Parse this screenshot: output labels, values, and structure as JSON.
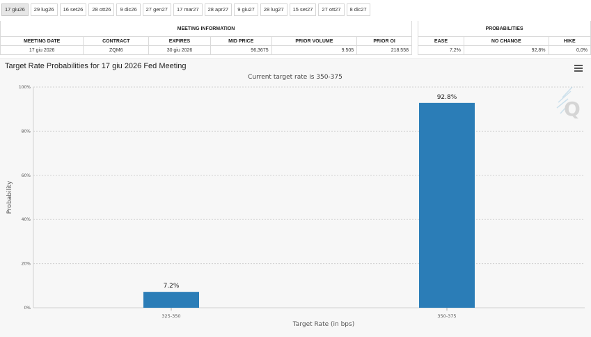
{
  "tabs": [
    {
      "label": "17 giu26",
      "active": true
    },
    {
      "label": "29 lug26"
    },
    {
      "label": "16 set26"
    },
    {
      "label": "28 ott26"
    },
    {
      "label": "9 dic26"
    },
    {
      "label": "27 gen27"
    },
    {
      "label": "17 mar27"
    },
    {
      "label": "28 apr27"
    },
    {
      "label": "9 giu27"
    },
    {
      "label": "28 lug27"
    },
    {
      "label": "15 set27"
    },
    {
      "label": "27 ott27"
    },
    {
      "label": "8 dic27"
    }
  ],
  "meeting_info": {
    "title": "MEETING INFORMATION",
    "headers": [
      "MEETING DATE",
      "CONTRACT",
      "EXPIRES",
      "MID PRICE",
      "PRIOR VOLUME",
      "PRIOR OI"
    ],
    "row": [
      "17 giu 2026",
      "ZQM6",
      "30 giu 2026",
      "96,3675",
      "9.505",
      "218.558"
    ]
  },
  "probabilities": {
    "title": "PROBABILITIES",
    "headers": [
      "EASE",
      "NO CHANGE",
      "HIKE"
    ],
    "row": [
      "7,2%",
      "92,8%",
      "0,0%"
    ]
  },
  "chart_data": {
    "type": "bar",
    "title": "Target Rate Probabilities for 17 giu 2026 Fed Meeting",
    "subtitle": "Current target rate is 350-375",
    "xlabel": "Target Rate (in bps)",
    "ylabel": "Probability",
    "categories": [
      "325-350",
      "350-375"
    ],
    "values": [
      7.2,
      92.8
    ],
    "data_labels": [
      "7.2%",
      "92.8%"
    ],
    "ylim": [
      0,
      100
    ],
    "yticks": [
      0,
      20,
      40,
      60,
      80,
      100
    ],
    "ytick_labels": [
      "0%",
      "20%",
      "40%",
      "60%",
      "80%",
      "100%"
    ],
    "bar_color": "#2b7db7",
    "grid": true
  }
}
